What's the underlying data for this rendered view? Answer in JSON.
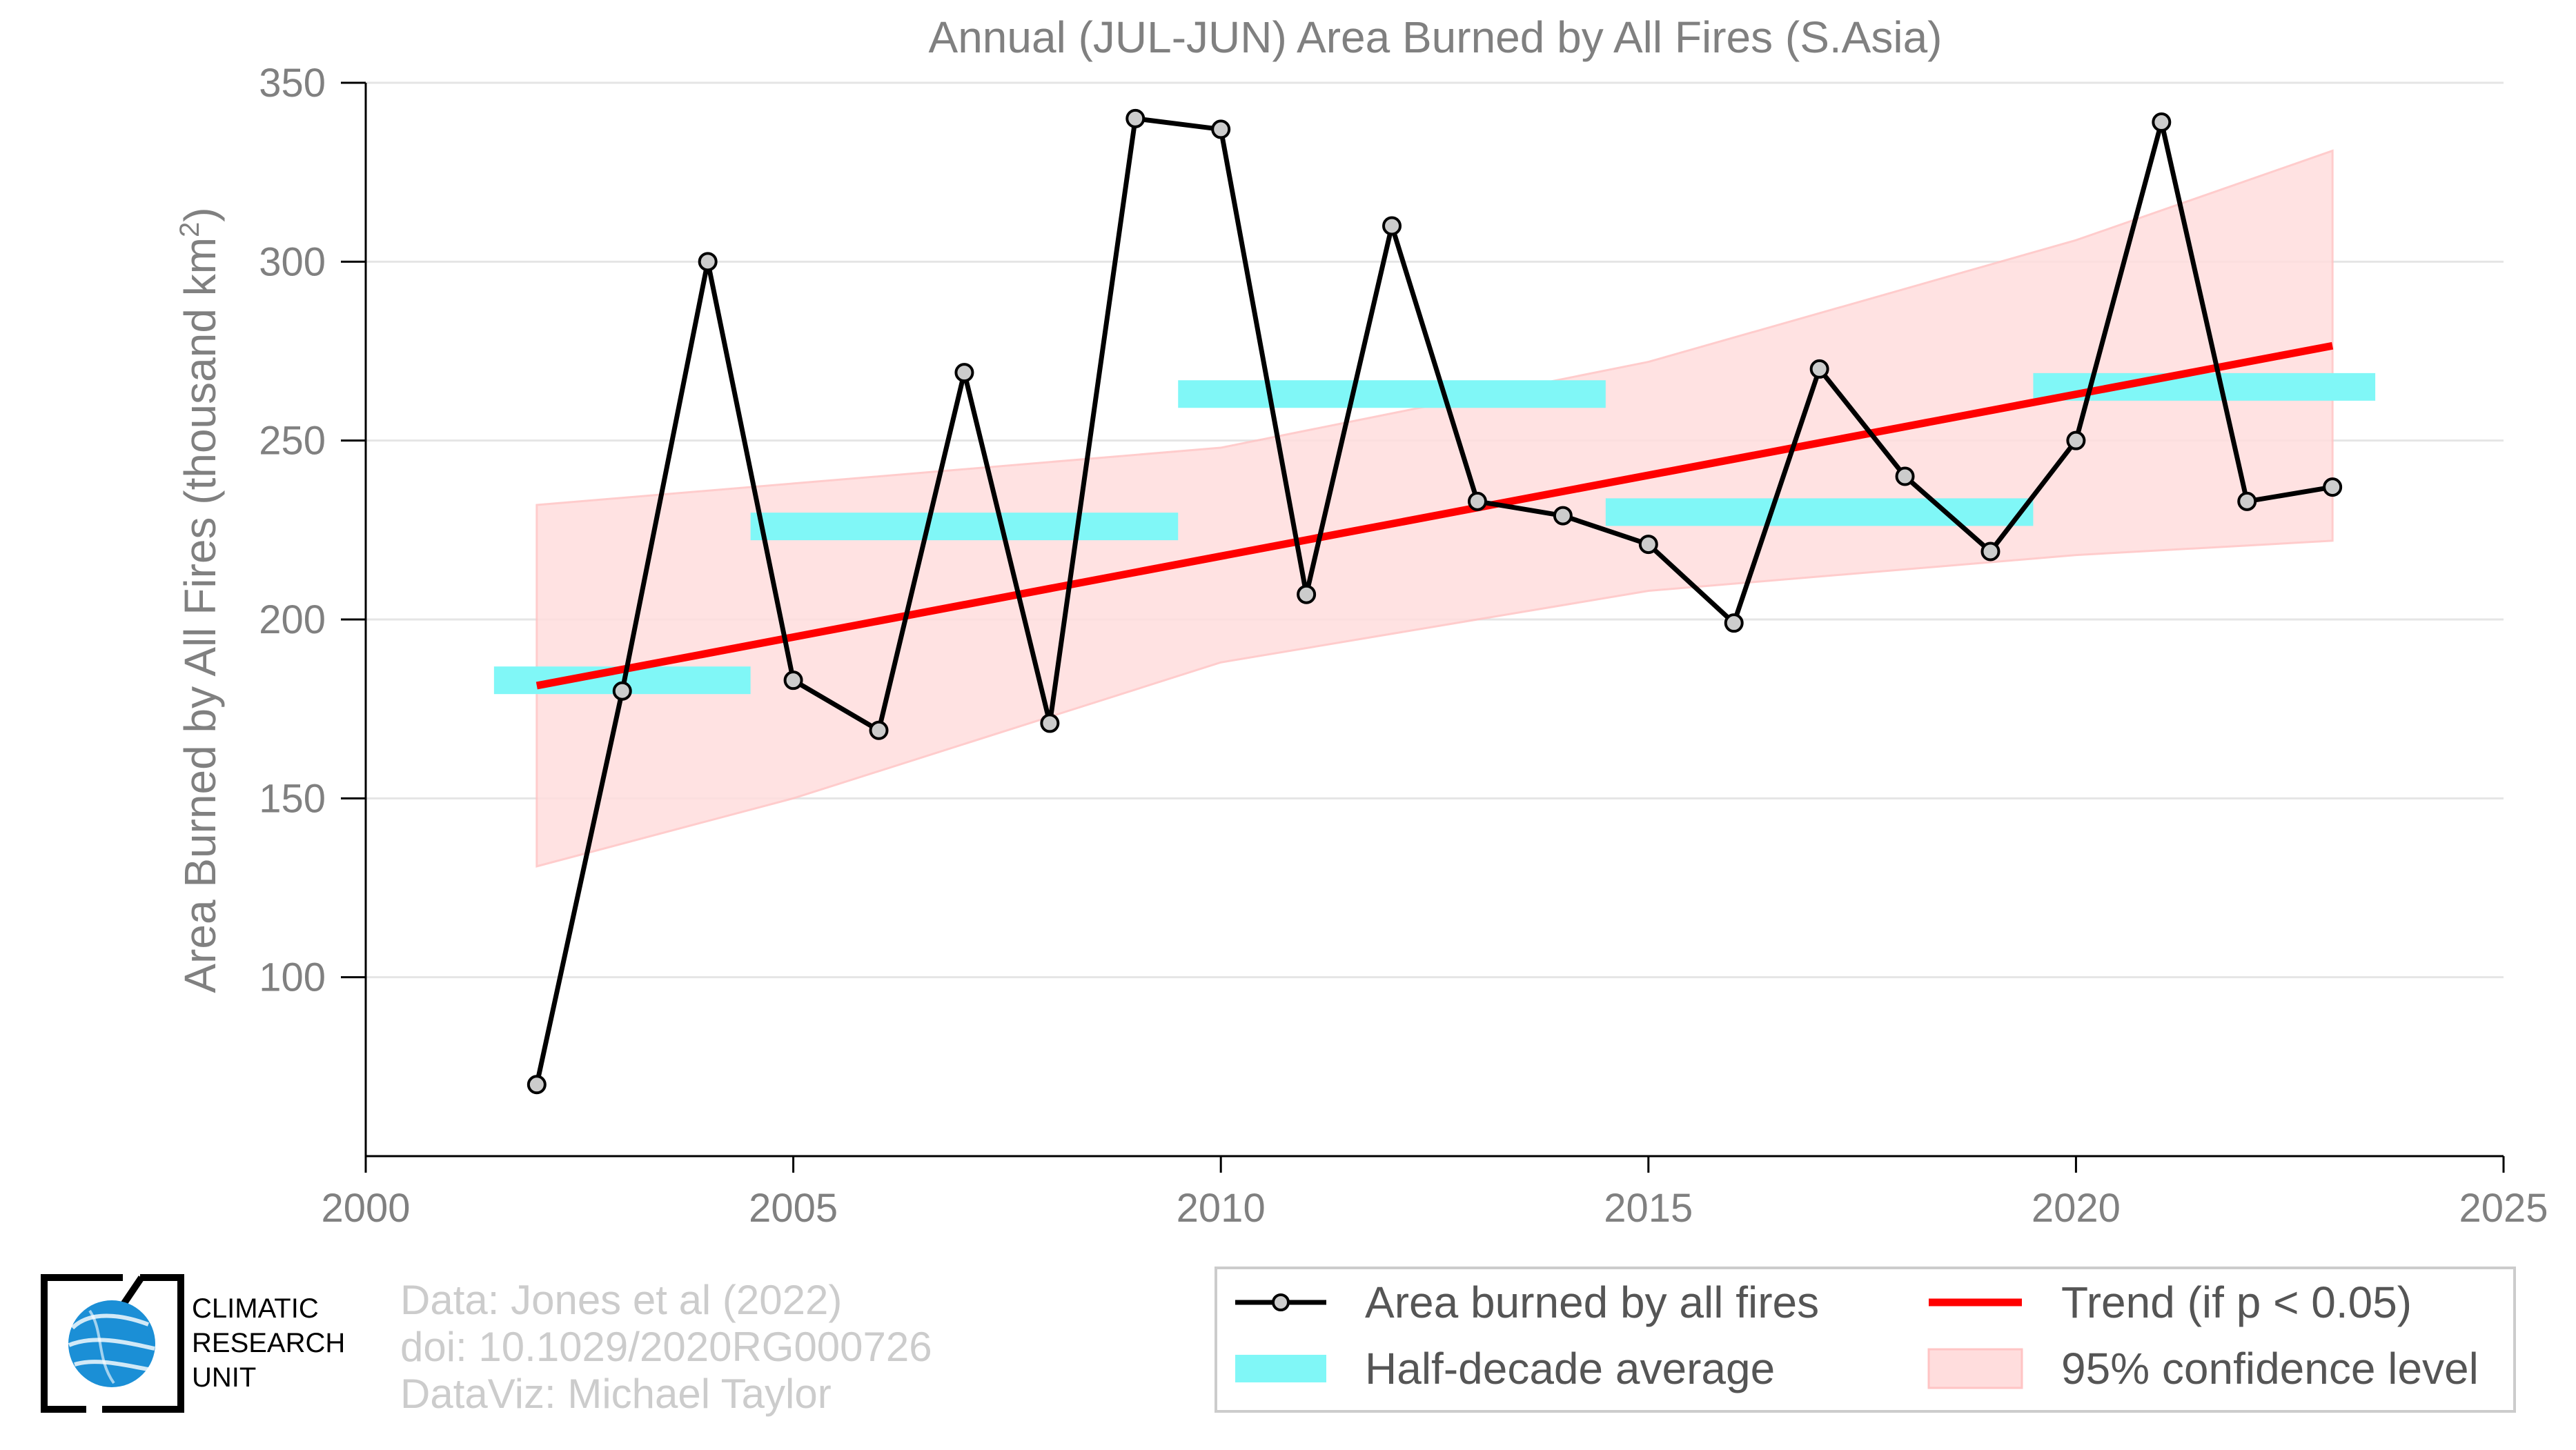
{
  "chart_data": {
    "type": "line",
    "title": "Annual (JUL-JUN) Area Burned by All Fires (S.Asia)",
    "ylabel_main": "Area Burned by All Fires (thousand km",
    "ylabel_sup": "2",
    "ylabel_end": ")",
    "xlim": [
      2000,
      2025
    ],
    "ylim": [
      50,
      350
    ],
    "xticks": [
      2000,
      2005,
      2010,
      2015,
      2020,
      2025
    ],
    "yticks": [
      100,
      150,
      200,
      250,
      300,
      350
    ],
    "grid": true,
    "legend_position": "bottom-right",
    "series": [
      {
        "name": "Area burned by all fires",
        "color": "#000000",
        "marker_fill": "#cccccc",
        "x": [
          2002,
          2003,
          2004,
          2005,
          2006,
          2007,
          2008,
          2009,
          2010,
          2011,
          2012,
          2013,
          2014,
          2015,
          2016,
          2017,
          2018,
          2019,
          2020,
          2021,
          2022,
          2023
        ],
        "y": [
          70,
          180,
          300,
          183,
          169,
          269,
          171,
          340,
          337,
          207,
          310,
          233,
          229,
          221,
          199,
          270,
          240,
          219,
          250,
          339,
          233,
          237
        ]
      }
    ],
    "half_decade_average": {
      "name": "Half-decade average",
      "color": "#80f7f7",
      "segments": [
        {
          "x0": 2001.5,
          "x1": 2004.5,
          "y": 183
        },
        {
          "x0": 2004.5,
          "x1": 2009.5,
          "y": 226
        },
        {
          "x0": 2009.5,
          "x1": 2014.5,
          "y": 263
        },
        {
          "x0": 2014.5,
          "x1": 2019.5,
          "y": 230
        },
        {
          "x0": 2019.5,
          "x1": 2023.5,
          "y": 265
        }
      ]
    },
    "trend": {
      "name": "Trend (if p < 0.05)",
      "color": "#ff0000",
      "x": [
        2002,
        2023
      ],
      "y": [
        181.5,
        276.5
      ]
    },
    "confidence_band": {
      "name": "95% confidence level",
      "color": "#ffdddd",
      "x": [
        2002,
        2005,
        2010,
        2015,
        2020,
        2023
      ],
      "upper": [
        232,
        238,
        248,
        272,
        306,
        331
      ],
      "lower": [
        131,
        150,
        188,
        208,
        218,
        222
      ]
    }
  },
  "footer": {
    "credit_lines": [
      "Data: Jones et al (2022)",
      "doi: 10.1029/2020RG000726",
      "DataViz: Michael Taylor"
    ],
    "logo_lines": [
      "CLIMATIC",
      "RESEARCH",
      "UNIT"
    ],
    "logo_icon": "globe-icon"
  }
}
